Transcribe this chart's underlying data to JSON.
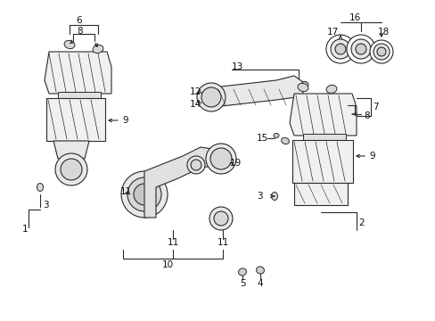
{
  "bg_color": "#ffffff",
  "line_color": "#2a2a2a",
  "text_color": "#111111",
  "figsize": [
    4.89,
    3.6
  ],
  "dpi": 100
}
